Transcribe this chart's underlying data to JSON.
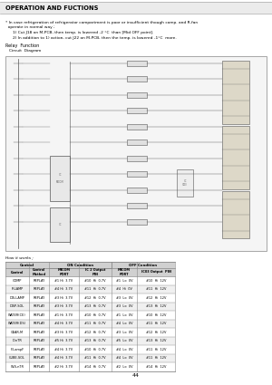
{
  "title": "OPERATION AND FUCTIONS",
  "title_bg": "#ebebeb",
  "title_border": "#aaaaaa",
  "page_bg": "#ffffff",
  "page_number": "44",
  "intro_line1": "* In case refrigeration of refrigerator compartment is poor or insufficient though comp. and R-fan",
  "intro_line2": "  operate in normal way ;",
  "note1": "1) Cut J18 on M-PCB, then temp. is lowered -2 °C  than [Mid OFF point].",
  "note2": "2) In addition to 1) action, cut J22 on M-PCB, then the temp. is lowered -1°C  more.",
  "relay_label": "Relay  Function",
  "circuit_label": "Circuit  Diagram",
  "how_it_works": "How it works ;",
  "table_header_row1_col1": "Control",
  "table_header_row1_col2": "Control\nMethod",
  "table_header_span1": "ON Condition",
  "table_header_span1_col1": "MICOM\nPORT",
  "table_header_span1_col2": "IC 2 Output\nPIN",
  "table_header_span2": "OFF Condition",
  "table_header_span2_col1": "MICOM\nPORT",
  "table_header_span2_col2": "IC03 Output  PIN",
  "table_rows": [
    [
      "COMP",
      "REPLAY",
      "#1 Hi  3.7V",
      "#10  Hi  0.7V",
      "#1  Lo  0V",
      "#10  Hi  12V"
    ],
    [
      "R-LAMP",
      "REPLAY",
      "#4 Hi  3.7V",
      "#11  Hi  0.7V",
      "#4  Hi  0V",
      "#11  Hi  12V"
    ],
    [
      "DIS-LAMP",
      "REPLAY",
      "#3 Hi  3.7V",
      "#12  Hi  0.7V",
      "#3  Lo  0V",
      "#12  Hi  12V"
    ],
    [
      "DISP-SOL",
      "REPLAY",
      "#3 Hi  3.7V",
      "#13  Hi  0.7V",
      "#3  Lo  0V",
      "#13  Hi  12V"
    ],
    [
      "WATER(CE)",
      "REPLAY",
      "#1 Hi  3.7V",
      "#10  Hi  0.7V",
      "#1  Lo  0V",
      "#10  Hi  12V"
    ],
    [
      "WATER(DS)",
      "REPLAY",
      "#4 Hi  3.7V",
      "#11  Hi  0.7V",
      "#4  Lo  0V",
      "#11  Hi  12V"
    ],
    [
      "GEAR-M",
      "REPLAY",
      "#3 Hi  3.7V",
      "#12  Hi  0.7V",
      "#3  Lo  0V",
      "#12  Hi  12V"
    ],
    [
      "D-nTR",
      "REPLAY",
      "#5 Hi  3.7V",
      "#13  Hi  0.7V",
      "#5  Lo  0V",
      "#13  Hi  12V"
    ],
    [
      "F-LampF",
      "REPLAY",
      "#4 Hi  3.7V",
      "#10  Hi  0.7V",
      "#4  Lo  0V",
      "#11  Hi  12V"
    ],
    [
      "CUBE-SOL",
      "REPLAY",
      "#4 Hi  3.7V",
      "#11  Hi  0.7V",
      "#4  Lo  0V",
      "#11  Hi  12V"
    ],
    [
      "W-S-nTR",
      "REPLAY",
      "#2 Hi  3.7V",
      "#14  Hi  0.7V",
      "#2  Lo  0V",
      "#14  Hi  12V"
    ]
  ],
  "circuit_box_color": "#f5f5f5",
  "circuit_border_color": "#999999",
  "table_header_bg": "#d0d0d0",
  "table_border": "#888888",
  "table_row_bg1": "#ffffff",
  "table_row_bg2": "#f0f0f0",
  "text_color": "#000000",
  "circuit_line_color": "#555555",
  "font_size_title": 4.8,
  "font_size_body": 3.5,
  "font_size_note": 3.2,
  "font_size_table_hdr": 2.8,
  "font_size_table_cell": 2.5,
  "font_size_page": 4.5,
  "font_size_circuit": 1.8
}
